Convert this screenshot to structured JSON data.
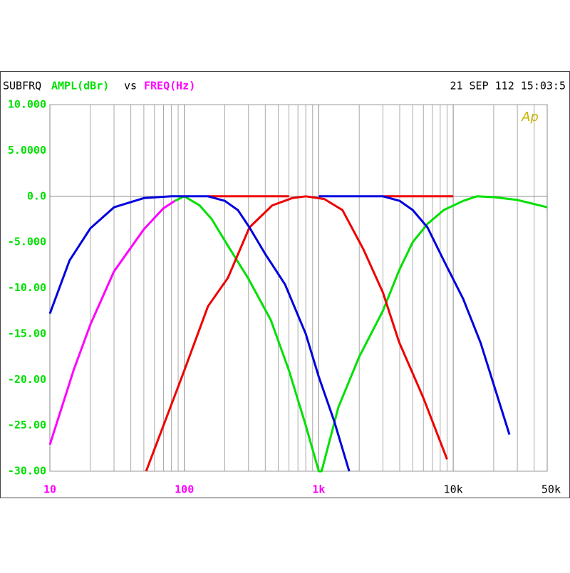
{
  "chart_data": {
    "type": "line",
    "title": "SUBFRQ",
    "ylabel": "AMPL(dBr)",
    "joiner": "vs",
    "xlabel": "FREQ(Hz)",
    "timestamp": "21 SEP 112 15:03:5",
    "annotation": "Ap",
    "xscale": "log",
    "xlim": [
      10,
      50000
    ],
    "xticks": [
      10,
      100,
      {
        "value": 1000,
        "label": "1k"
      },
      {
        "value": 10000,
        "label": "10k"
      },
      {
        "value": 50000,
        "label": "50k"
      }
    ],
    "xtick_colors": [
      "#ff00ff",
      "#ff00ff",
      "#ff00ff",
      "#000000",
      "#000000"
    ],
    "xminorticks": [
      20,
      30,
      40,
      50,
      60,
      70,
      80,
      90,
      200,
      300,
      400,
      500,
      600,
      700,
      800,
      900,
      2000,
      3000,
      4000,
      5000,
      6000,
      7000,
      8000,
      9000,
      20000,
      30000,
      40000
    ],
    "ylim": [
      -30,
      10
    ],
    "yticks": [
      {
        "value": 10,
        "label": "10.000"
      },
      {
        "value": 5,
        "label": "5.0000"
      },
      {
        "value": 0,
        "label": "0.0"
      },
      {
        "value": -5,
        "label": "-5.000"
      },
      {
        "value": -10,
        "label": "-10.00"
      },
      {
        "value": -15,
        "label": "-15.00"
      },
      {
        "value": -20,
        "label": "-20.00"
      },
      {
        "value": -25,
        "label": "-25.00"
      },
      {
        "value": -30,
        "label": "-30.00"
      }
    ],
    "series": [
      {
        "color": "#ff00ff",
        "x": [
          10,
          15,
          20,
          30,
          50,
          70,
          85
        ],
        "values": [
          -27.1,
          -19,
          -14,
          -8.2,
          -3.6,
          -1.3,
          -0.5
        ]
      },
      {
        "color": "#00e000",
        "x": [
          85,
          100,
          130,
          160,
          211,
          300,
          440,
          600,
          800,
          1000,
          1050,
          1400,
          2000,
          3000,
          3955,
          5000,
          6450,
          8500,
          11860,
          15000,
          20000,
          30000,
          50000
        ],
        "values": [
          -0.5,
          0,
          -1,
          -2.5,
          -5.4,
          -9,
          -13.5,
          -19,
          -25,
          -30,
          -30,
          -23,
          -17.5,
          -12.5,
          -8.1,
          -5,
          -3,
          -1.5,
          -0.5,
          0,
          -0.1,
          -0.4,
          -1.2
        ]
      },
      {
        "color": "#ee0000",
        "x": [
          52,
          100,
          150,
          211,
          305,
          450,
          634,
          800,
          1100,
          1500,
          2150,
          3000,
          3955,
          6000,
          9000
        ],
        "values": [
          -30,
          -19,
          -12,
          -8.9,
          -3.4,
          -1,
          -0.2,
          0,
          -0.3,
          -1.5,
          -5.8,
          -10.5,
          -15.9,
          -22,
          -28.7
        ]
      },
      {
        "color": "#ee0000",
        "x": [
          150,
          600,
          1000,
          3000,
          10000
        ],
        "values": [
          0,
          0,
          null,
          0,
          0
        ]
      },
      {
        "color": "#0000dd",
        "x": [
          10,
          14,
          20,
          30,
          50,
          80,
          150,
          200,
          250,
          305,
          400,
          561,
          800,
          1000,
          1300,
          1683
        ],
        "values": [
          -12.8,
          -7,
          -3.5,
          -1.2,
          -0.2,
          0,
          0,
          -0.5,
          -1.5,
          -3.4,
          -6.3,
          -9.6,
          -15,
          -19.7,
          -24.5,
          -30
        ]
      },
      {
        "color": "#0000dd",
        "x": [
          1000,
          3000,
          4000,
          5000,
          6440,
          8500,
          11860,
          16000,
          26200
        ],
        "values": [
          0,
          0,
          -0.5,
          -1.5,
          -3.4,
          -7,
          -11.2,
          -16,
          -26
        ]
      }
    ]
  }
}
